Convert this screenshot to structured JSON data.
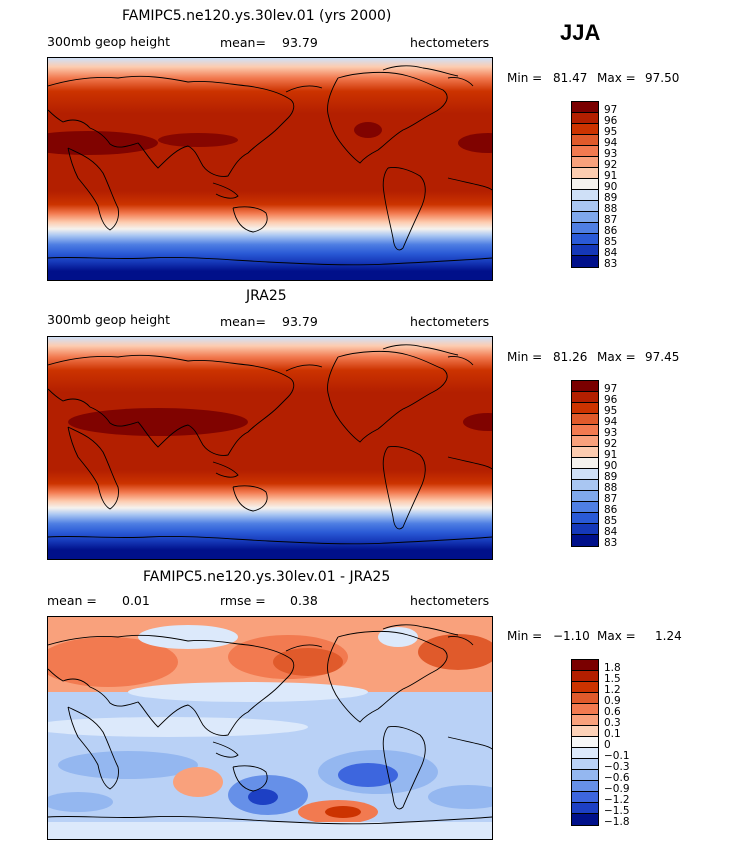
{
  "season": "JJA",
  "panels": [
    {
      "title": "FAMIPC5.ne120.ys.30lev.01 (yrs 2000)",
      "left_label": "300mb geop height",
      "mean_label": "mean=",
      "mean_value": "93.79",
      "units": "hectometers",
      "min_label": "Min =",
      "min_value": "81.47",
      "max_label": "Max =",
      "max_value": "97.50",
      "colorbar_labels": [
        "97",
        "96",
        "95",
        "94",
        "93",
        "92",
        "91",
        "90",
        "89",
        "88",
        "87",
        "86",
        "85",
        "84",
        "83"
      ]
    },
    {
      "title": "JRA25",
      "left_label": "300mb geop height",
      "mean_label": "mean=",
      "mean_value": "93.79",
      "units": "hectometers",
      "min_label": "Min =",
      "min_value": "81.26",
      "max_label": "Max =",
      "max_value": "97.45",
      "colorbar_labels": [
        "97",
        "96",
        "95",
        "94",
        "93",
        "92",
        "91",
        "90",
        "89",
        "88",
        "87",
        "86",
        "85",
        "84",
        "83"
      ]
    },
    {
      "title": "FAMIPC5.ne120.ys.30lev.01 - JRA25",
      "mean_label": "mean =",
      "mean_value": "0.01",
      "rmse_label": "rmse =",
      "rmse_value": "0.38",
      "units": "hectometers",
      "min_label": "Min =",
      "min_value": "−1.10",
      "max_label": "Max =",
      "max_value": "1.24",
      "colorbar_labels": [
        "1.8",
        "1.5",
        "1.2",
        "0.9",
        "0.6",
        "0.3",
        "0.1",
        "0",
        "−0.1",
        "−0.3",
        "−0.6",
        "−0.9",
        "−1.2",
        "−1.5",
        "−1.8"
      ]
    }
  ],
  "colors": {
    "scale": [
      "#7a0000",
      "#b31f00",
      "#cc3300",
      "#e05a2b",
      "#f27a50",
      "#f9a17c",
      "#fdccb0",
      "#f5f2ee",
      "#cfe0f7",
      "#a9c6f2",
      "#7fa8ec",
      "#4f7fe3",
      "#2a5ad6",
      "#1538b8",
      "#00108a"
    ],
    "diff_scale": [
      "#7a0000",
      "#b31f00",
      "#cc3300",
      "#e05a2b",
      "#f27a50",
      "#f9a17c",
      "#fdd2b8",
      "#f7f7f7",
      "#dce9fb",
      "#b9d1f6",
      "#94b7f0",
      "#6690e8",
      "#3d66de",
      "#1d40c4",
      "#00108a"
    ],
    "coast": "#000000"
  }
}
